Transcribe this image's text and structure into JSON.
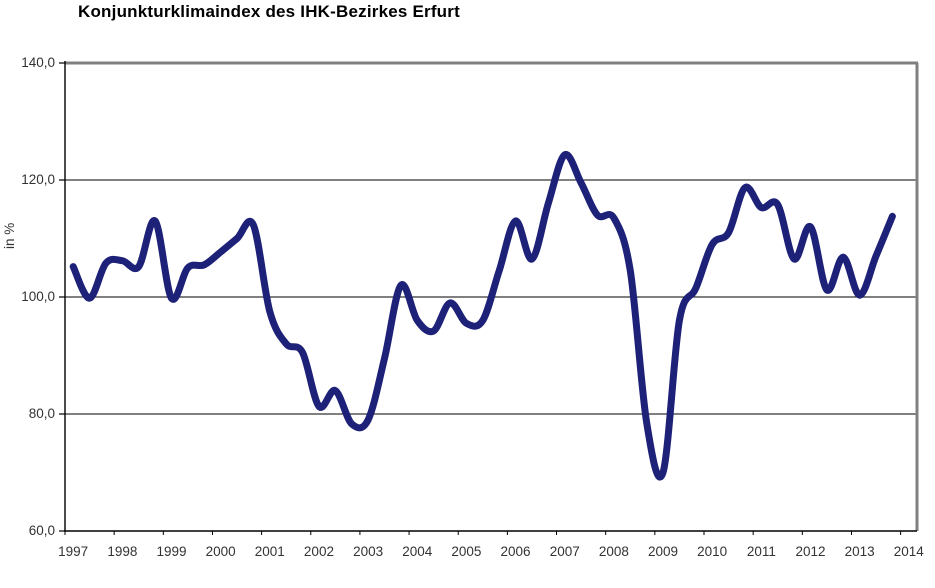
{
  "title": "Konjunkturklimaindex des IHK-Bezirkes Erfurt",
  "colors": {
    "line": "#1e2178",
    "grid": "#000000",
    "frame": "#808080",
    "axis": "#000000",
    "text": "#333333",
    "background": "#ffffff"
  },
  "chart_data": {
    "type": "line",
    "title": "Konjunkturklimaindex des IHK-Bezirkes Erfurt",
    "xlabel": "",
    "ylabel": "in %",
    "ylim": [
      60.0,
      140.0
    ],
    "ytick_values": [
      140,
      120,
      100,
      80,
      60
    ],
    "ytick_labels": [
      "140,0",
      "120,0",
      "100,0",
      "80,0",
      "60,0"
    ],
    "xtick_labels": [
      "1997",
      "1998",
      "1999",
      "2000",
      "2001",
      "2002",
      "2003",
      "2004",
      "2005",
      "2006",
      "2007",
      "2008",
      "2009",
      "2010",
      "2011",
      "2012",
      "2013",
      "2014"
    ],
    "x_start_year": 1997,
    "surveys_per_year": 3,
    "grid": "horizontal-only",
    "legend": "none",
    "line_style": "smooth",
    "series": [
      {
        "name": "Konjunkturklimaindex",
        "color": "#1e2178",
        "values": [
          105.2,
          99.8,
          105.8,
          106.2,
          105.2,
          113.0,
          99.8,
          105.0,
          105.5,
          107.7,
          110.0,
          112.3,
          97.5,
          92.0,
          90.5,
          81.3,
          84.0,
          78.3,
          79.0,
          89.5,
          102.0,
          96.0,
          94.2,
          99.0,
          95.5,
          96.0,
          104.5,
          113.0,
          106.5,
          116.0,
          124.3,
          119.5,
          114.0,
          113.5,
          104.5,
          78.5,
          70.0,
          96.0,
          101.5,
          109.0,
          111.0,
          118.7,
          115.3,
          115.8,
          106.5,
          112.0,
          101.2,
          106.8,
          100.3,
          107.0,
          113.8
        ]
      }
    ]
  }
}
